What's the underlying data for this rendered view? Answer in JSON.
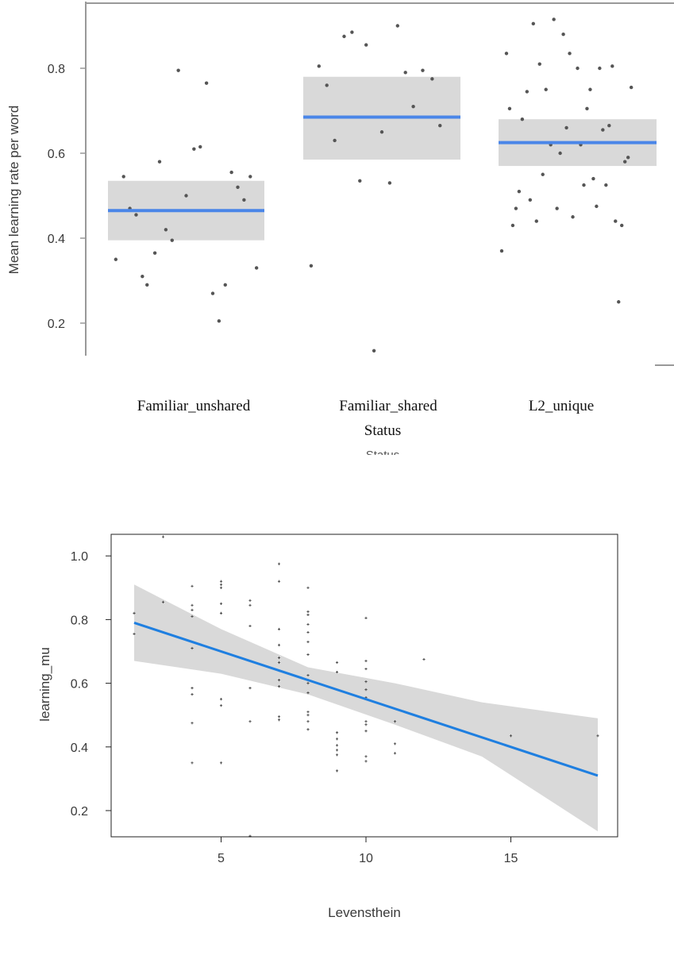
{
  "colors": {
    "band": "#d9d9d9",
    "line_top": "#4a86e8",
    "line_bottom": "#1f7fe0",
    "point": "#555555",
    "frame": "#999999"
  },
  "chart_data": [
    {
      "type": "scatter",
      "title": "",
      "xlabel": "Status",
      "ylabel": "Mean learning rate per word",
      "categories": [
        "Familiar_unshared",
        "Familiar_shared",
        "L2_unique"
      ],
      "ylim": [
        0.1,
        0.95
      ],
      "yticks": [
        0.2,
        0.4,
        0.6,
        0.8
      ],
      "yticklabels": [
        "0.2",
        "0.4",
        "0.6",
        "0.8"
      ],
      "cropped_axis_title_fragment": "Status",
      "groups": [
        {
          "category": "Familiar_unshared",
          "mean": 0.465,
          "ci": [
            0.395,
            0.535
          ],
          "points": [
            [
              0.05,
              0.35
            ],
            [
              0.1,
              0.545
            ],
            [
              0.14,
              0.47
            ],
            [
              0.18,
              0.455
            ],
            [
              0.22,
              0.31
            ],
            [
              0.25,
              0.29
            ],
            [
              0.3,
              0.365
            ],
            [
              0.33,
              0.58
            ],
            [
              0.37,
              0.42
            ],
            [
              0.41,
              0.395
            ],
            [
              0.45,
              0.795
            ],
            [
              0.5,
              0.5
            ],
            [
              0.55,
              0.61
            ],
            [
              0.59,
              0.615
            ],
            [
              0.63,
              0.765
            ],
            [
              0.67,
              0.27
            ],
            [
              0.71,
              0.205
            ],
            [
              0.75,
              0.29
            ],
            [
              0.79,
              0.555
            ],
            [
              0.83,
              0.52
            ],
            [
              0.87,
              0.49
            ],
            [
              0.91,
              0.545
            ],
            [
              0.95,
              0.33
            ]
          ]
        },
        {
          "category": "Familiar_shared",
          "mean": 0.685,
          "ci": [
            0.585,
            0.78
          ],
          "points": [
            [
              0.05,
              0.335
            ],
            [
              0.1,
              0.805
            ],
            [
              0.15,
              0.76
            ],
            [
              0.2,
              0.63
            ],
            [
              0.26,
              0.875
            ],
            [
              0.31,
              0.885
            ],
            [
              0.36,
              0.535
            ],
            [
              0.4,
              0.855
            ],
            [
              0.45,
              0.135
            ],
            [
              0.5,
              0.65
            ],
            [
              0.55,
              0.53
            ],
            [
              0.6,
              0.9
            ],
            [
              0.65,
              0.79
            ],
            [
              0.7,
              0.71
            ],
            [
              0.76,
              0.795
            ],
            [
              0.82,
              0.775
            ],
            [
              0.87,
              0.665
            ]
          ]
        },
        {
          "category": "L2_unique",
          "mean": 0.625,
          "ci": [
            0.57,
            0.68
          ],
          "points": [
            [
              0.02,
              0.37
            ],
            [
              0.05,
              0.835
            ],
            [
              0.07,
              0.705
            ],
            [
              0.09,
              0.43
            ],
            [
              0.11,
              0.47
            ],
            [
              0.13,
              0.51
            ],
            [
              0.15,
              0.68
            ],
            [
              0.18,
              0.745
            ],
            [
              0.2,
              0.49
            ],
            [
              0.22,
              0.905
            ],
            [
              0.24,
              0.44
            ],
            [
              0.26,
              0.81
            ],
            [
              0.28,
              0.55
            ],
            [
              0.3,
              0.75
            ],
            [
              0.33,
              0.62
            ],
            [
              0.35,
              0.915
            ],
            [
              0.37,
              0.47
            ],
            [
              0.39,
              0.6
            ],
            [
              0.41,
              0.88
            ],
            [
              0.43,
              0.66
            ],
            [
              0.45,
              0.835
            ],
            [
              0.47,
              0.45
            ],
            [
              0.5,
              0.8
            ],
            [
              0.52,
              0.62
            ],
            [
              0.54,
              0.525
            ],
            [
              0.56,
              0.705
            ],
            [
              0.58,
              0.75
            ],
            [
              0.6,
              0.54
            ],
            [
              0.62,
              0.475
            ],
            [
              0.64,
              0.8
            ],
            [
              0.66,
              0.655
            ],
            [
              0.68,
              0.525
            ],
            [
              0.7,
              0.665
            ],
            [
              0.72,
              0.805
            ],
            [
              0.74,
              0.44
            ],
            [
              0.76,
              0.25
            ],
            [
              0.78,
              0.43
            ],
            [
              0.8,
              0.58
            ],
            [
              0.82,
              0.59
            ],
            [
              0.84,
              0.755
            ]
          ]
        }
      ]
    },
    {
      "type": "scatter",
      "title": "",
      "xlabel": "Levensthein",
      "ylabel": "learning_mu",
      "xlim": [
        1.5,
        18.5
      ],
      "ylim": [
        0.11,
        1.08
      ],
      "xticks": [
        5,
        10,
        15
      ],
      "xticklabels": [
        "5",
        "10",
        "15"
      ],
      "yticks": [
        0.2,
        0.4,
        0.6,
        0.8,
        1.0
      ],
      "yticklabels": [
        "0.2",
        "0.4",
        "0.6",
        "0.8",
        "1.0"
      ],
      "fit": {
        "x": [
          2,
          18
        ],
        "y": [
          0.79,
          0.31
        ]
      },
      "band": {
        "x": [
          2,
          5,
          8,
          11,
          14,
          18
        ],
        "lower": [
          0.67,
          0.63,
          0.565,
          0.47,
          0.37,
          0.135
        ],
        "upper": [
          0.91,
          0.77,
          0.65,
          0.6,
          0.54,
          0.49
        ]
      },
      "points": [
        [
          2,
          0.82
        ],
        [
          2,
          0.755
        ],
        [
          3,
          1.06
        ],
        [
          3,
          0.855
        ],
        [
          4,
          0.905
        ],
        [
          4,
          0.845
        ],
        [
          4,
          0.83
        ],
        [
          4,
          0.81
        ],
        [
          4,
          0.71
        ],
        [
          4,
          0.585
        ],
        [
          4,
          0.565
        ],
        [
          4,
          0.475
        ],
        [
          4,
          0.35
        ],
        [
          5,
          0.92
        ],
        [
          5,
          0.91
        ],
        [
          5,
          0.9
        ],
        [
          5,
          0.85
        ],
        [
          5,
          0.82
        ],
        [
          5,
          0.55
        ],
        [
          5,
          0.53
        ],
        [
          5,
          0.35
        ],
        [
          6,
          0.86
        ],
        [
          6,
          0.845
        ],
        [
          6,
          0.78
        ],
        [
          6,
          0.585
        ],
        [
          6,
          0.48
        ],
        [
          6,
          0.12
        ],
        [
          7,
          0.975
        ],
        [
          7,
          0.92
        ],
        [
          7,
          0.77
        ],
        [
          7,
          0.72
        ],
        [
          7,
          0.68
        ],
        [
          7,
          0.665
        ],
        [
          7,
          0.64
        ],
        [
          7,
          0.61
        ],
        [
          7,
          0.59
        ],
        [
          7,
          0.495
        ],
        [
          7,
          0.485
        ],
        [
          8,
          0.9
        ],
        [
          8,
          0.825
        ],
        [
          8,
          0.815
        ],
        [
          8,
          0.785
        ],
        [
          8,
          0.76
        ],
        [
          8,
          0.73
        ],
        [
          8,
          0.69
        ],
        [
          8,
          0.625
        ],
        [
          8,
          0.61
        ],
        [
          8,
          0.6
        ],
        [
          8,
          0.57
        ],
        [
          8,
          0.51
        ],
        [
          8,
          0.5
        ],
        [
          8,
          0.48
        ],
        [
          8,
          0.455
        ],
        [
          9,
          0.665
        ],
        [
          9,
          0.635
        ],
        [
          9,
          0.445
        ],
        [
          9,
          0.425
        ],
        [
          9,
          0.405
        ],
        [
          9,
          0.39
        ],
        [
          9,
          0.375
        ],
        [
          9,
          0.325
        ],
        [
          10,
          0.805
        ],
        [
          10,
          0.67
        ],
        [
          10,
          0.645
        ],
        [
          10,
          0.605
        ],
        [
          10,
          0.58
        ],
        [
          10,
          0.555
        ],
        [
          10,
          0.48
        ],
        [
          10,
          0.47
        ],
        [
          10,
          0.45
        ],
        [
          10,
          0.37
        ],
        [
          10,
          0.355
        ],
        [
          11,
          0.48
        ],
        [
          11,
          0.41
        ],
        [
          11,
          0.38
        ],
        [
          12,
          0.675
        ],
        [
          15,
          0.435
        ],
        [
          18,
          0.435
        ]
      ]
    }
  ]
}
